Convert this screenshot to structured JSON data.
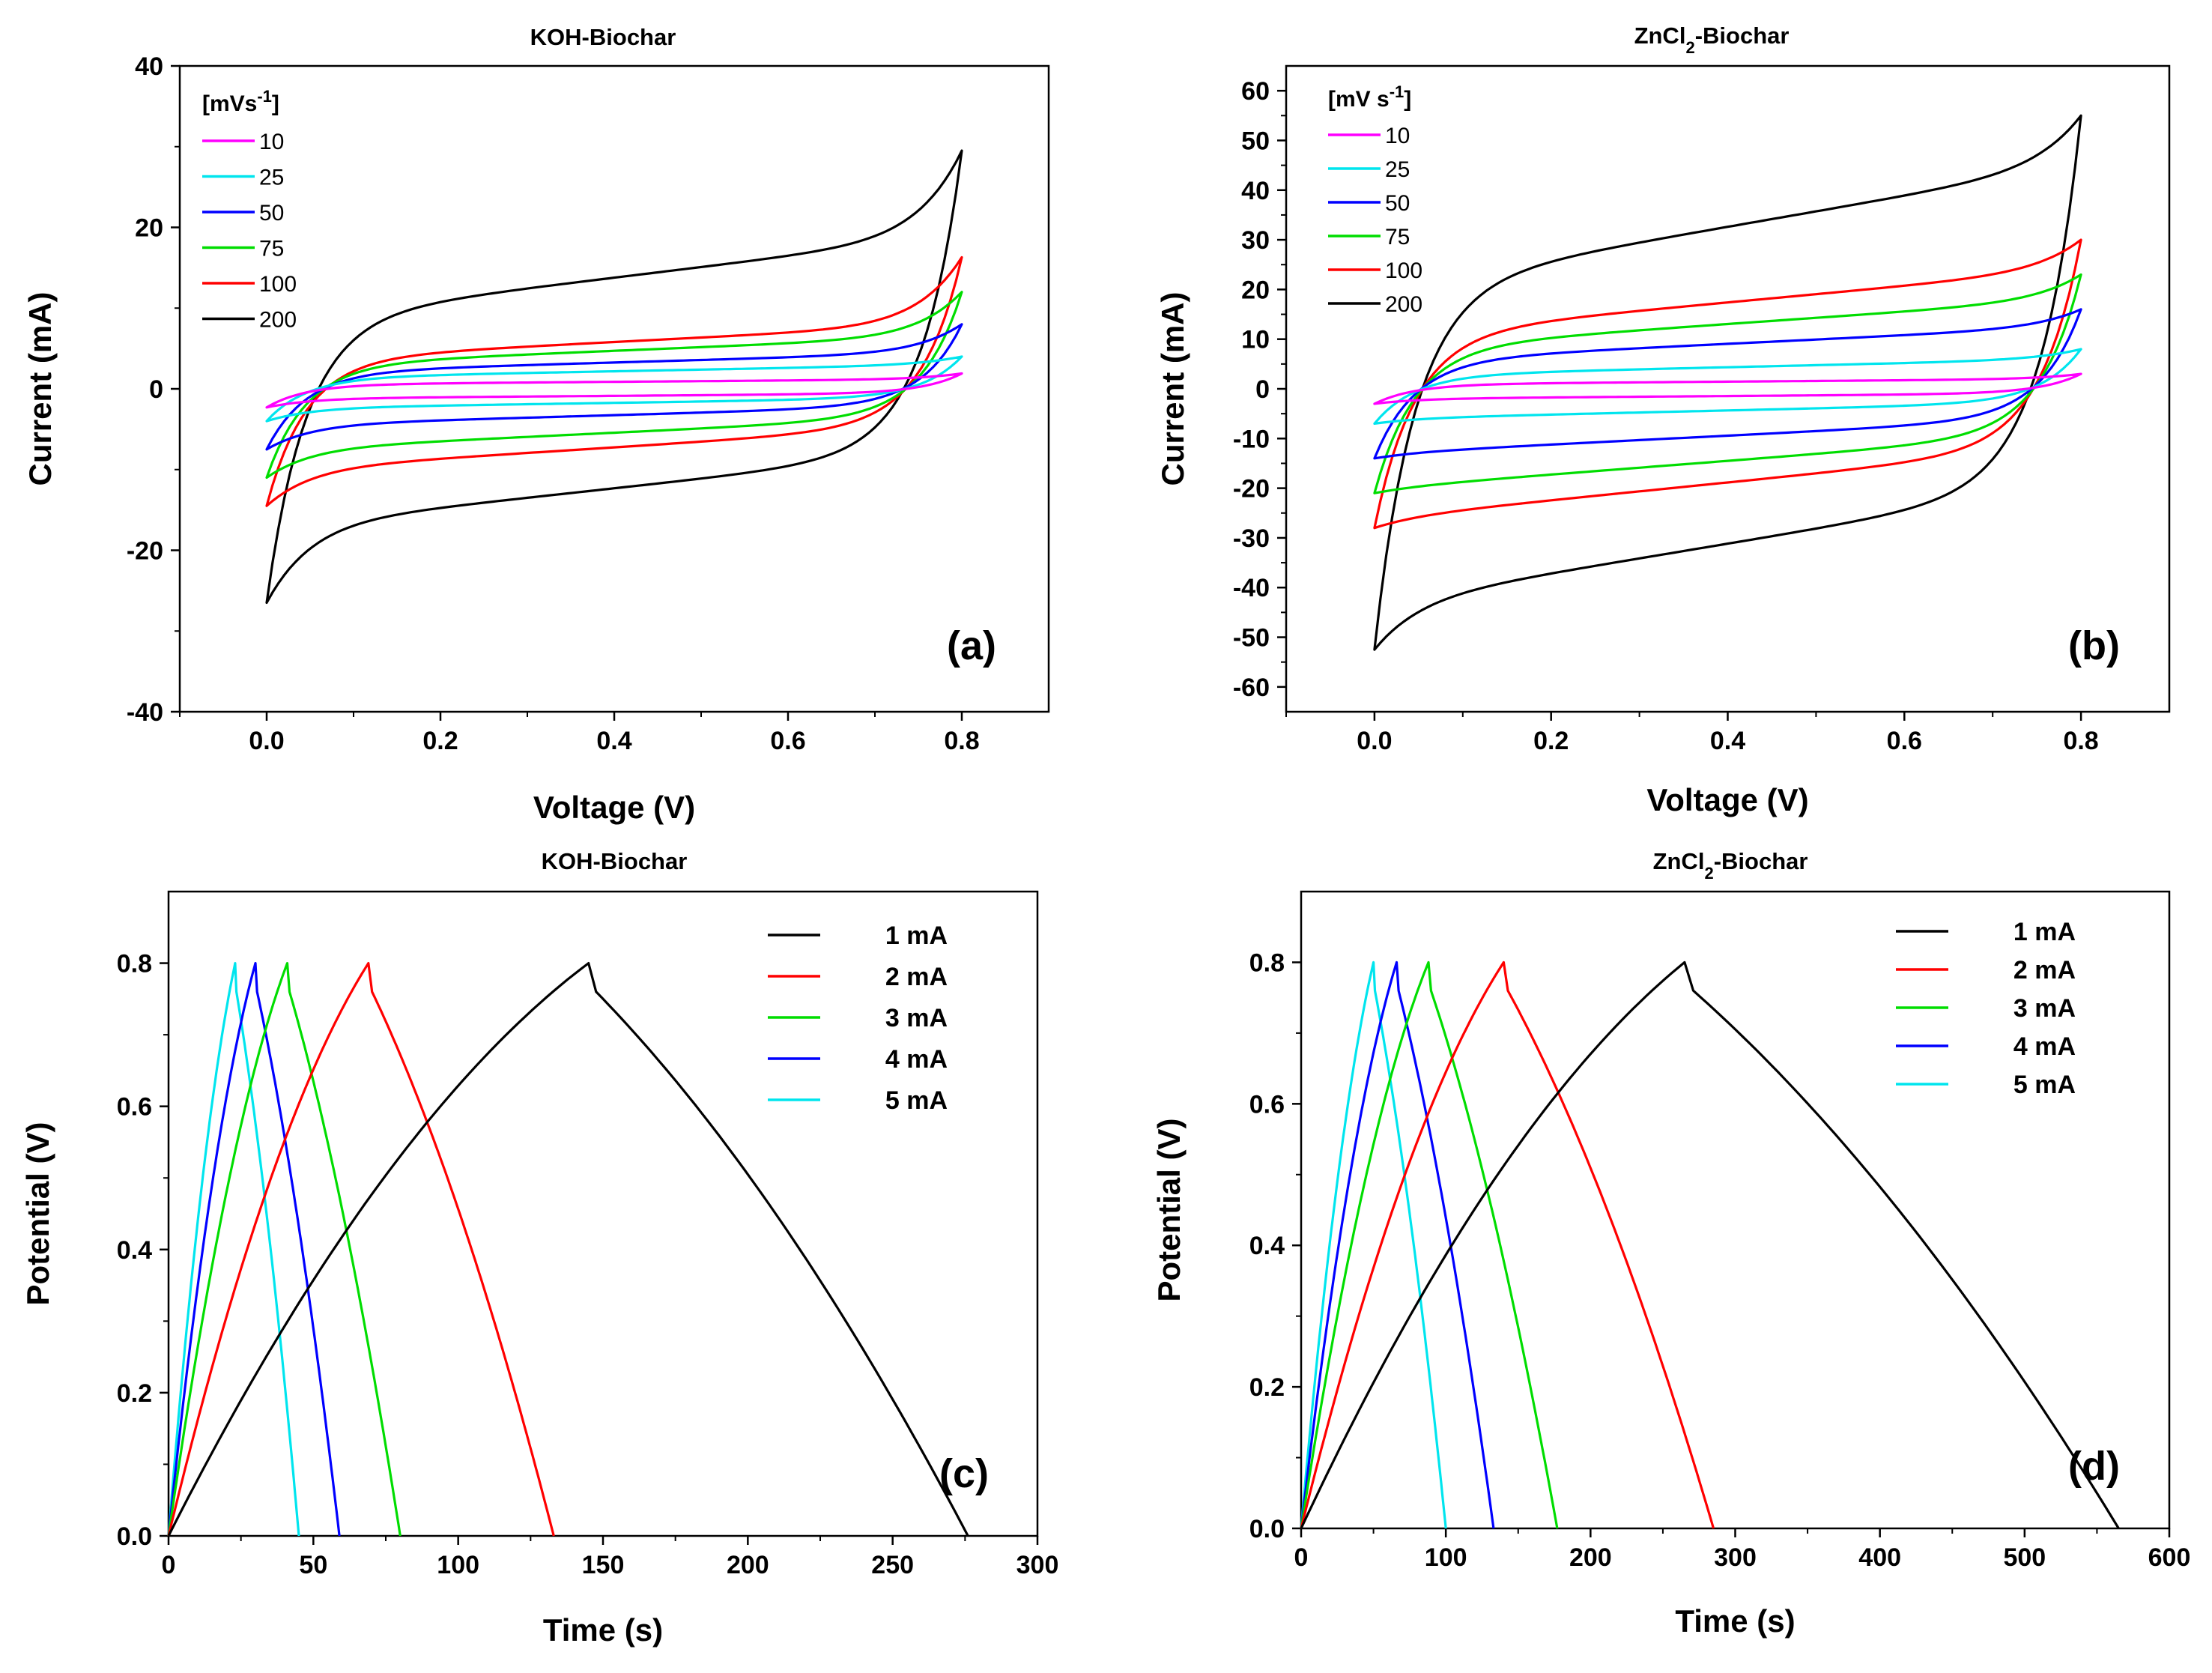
{
  "chart_data": [
    {
      "id": "a",
      "type": "line",
      "title": "KOH-Biochar",
      "xlabel": "Voltage (V)",
      "ylabel": "Current (mA)",
      "panel_label": "(a)",
      "xlim": [
        -0.1,
        0.9
      ],
      "ylim": [
        -40,
        40
      ],
      "xticks": [
        0.0,
        0.2,
        0.4,
        0.6,
        0.8
      ],
      "xtick_labels": [
        "0.0",
        "0.2",
        "0.4",
        "0.6",
        "0.8"
      ],
      "yticks": [
        -40,
        -20,
        0,
        20,
        40
      ],
      "ytick_labels": [
        "-40",
        "-20",
        "0",
        "20",
        "40"
      ],
      "legend_title": "[mVs-1]",
      "legend_title_main": "[mVs",
      "legend_title_sup": "-1",
      "legend_title_end": "]",
      "legend_position": "top-left",
      "series": [
        {
          "name": "10",
          "color": "#ff00ff",
          "cv": {
            "a": -1.2,
            "b": 1.2,
            "ai": -2.3,
            "bi": 1.9,
            "k": 1.3
          }
        },
        {
          "name": "25",
          "color": "#00e5ee",
          "cv": {
            "a": -2.4,
            "b": 3.0,
            "ai": -4.0,
            "bi": 4.0,
            "k": 3.0
          }
        },
        {
          "name": "50",
          "color": "#0000ff",
          "cv": {
            "a": -4.5,
            "b": 4.5,
            "ai": -7.5,
            "bi": 8.0,
            "k": 5.0
          }
        },
        {
          "name": "75",
          "color": "#00dd00",
          "cv": {
            "a": -7.5,
            "b": 6.5,
            "ai": -11.0,
            "bi": 12.0,
            "k": 6.5
          }
        },
        {
          "name": "100",
          "color": "#ff0000",
          "cv": {
            "a": -10.0,
            "b": 8.0,
            "ai": -14.5,
            "bi": 16.3,
            "k": 7.5
          }
        },
        {
          "name": "200",
          "color": "#000000",
          "cv": {
            "a": -17.0,
            "b": 19.0,
            "ai": -26.5,
            "bi": 29.5,
            "k": 11.0
          }
        }
      ]
    },
    {
      "id": "b",
      "type": "line",
      "title": "ZnCl2-Biochar",
      "title_pre": "ZnCl",
      "title_sub": "2",
      "title_post": "-Biochar",
      "xlabel": "Voltage (V)",
      "ylabel": "Current (mA)",
      "panel_label": "(b)",
      "xlim": [
        -0.1,
        0.9
      ],
      "ylim": [
        -65,
        65
      ],
      "xticks": [
        0.0,
        0.2,
        0.4,
        0.6,
        0.8
      ],
      "xtick_labels": [
        "0.0",
        "0.2",
        "0.4",
        "0.6",
        "0.8"
      ],
      "yticks": [
        -60,
        -50,
        -40,
        -30,
        -20,
        -10,
        0,
        10,
        20,
        30,
        40,
        50,
        60
      ],
      "ytick_labels": [
        "-60",
        "-50",
        "-40",
        "-30",
        "-20",
        "-10",
        "0",
        "10",
        "20",
        "30",
        "40",
        "50",
        "60"
      ],
      "legend_title": "[mV s-1]",
      "legend_title_main": "[mV s",
      "legend_title_sup": "-1",
      "legend_title_end": "]",
      "legend_position": "top-left",
      "series": [
        {
          "name": "10",
          "color": "#ff00ff",
          "cv": {
            "a": -2.0,
            "b": 2.0,
            "ai": -3.0,
            "bi": 3.0,
            "k": 1.5
          }
        },
        {
          "name": "25",
          "color": "#00e5ee",
          "cv": {
            "a": -6.0,
            "b": 6.0,
            "ai": -7.0,
            "bi": 8.0,
            "k": 2.0
          }
        },
        {
          "name": "50",
          "color": "#0000ff",
          "cv": {
            "a": -13.0,
            "b": 12.5,
            "ai": -14.0,
            "bi": 16.0,
            "k": 3.5
          }
        },
        {
          "name": "75",
          "color": "#00dd00",
          "cv": {
            "a": -20.0,
            "b": 18.0,
            "ai": -21.0,
            "bi": 23.0,
            "k": 5.0
          }
        },
        {
          "name": "100",
          "color": "#ff0000",
          "cv": {
            "a": -26.0,
            "b": 24.0,
            "ai": -28.0,
            "bi": 30.0,
            "k": 6.0
          }
        },
        {
          "name": "200",
          "color": "#000000",
          "cv": {
            "a": -43.0,
            "b": 45.0,
            "ai": -52.5,
            "bi": 55.0,
            "k": 9.5
          }
        }
      ]
    },
    {
      "id": "c",
      "type": "line",
      "title": "KOH-Biochar",
      "xlabel": "Time (s)",
      "ylabel": "Potential (V)",
      "panel_label": "(c)",
      "xlim": [
        0,
        300
      ],
      "ylim": [
        0,
        0.9
      ],
      "xticks": [
        0,
        50,
        100,
        150,
        200,
        250,
        300
      ],
      "xtick_labels": [
        "0",
        "50",
        "100",
        "150",
        "200",
        "250",
        "300"
      ],
      "yticks": [
        0.0,
        0.2,
        0.4,
        0.6,
        0.8
      ],
      "ytick_labels": [
        "0.0",
        "0.2",
        "0.4",
        "0.6",
        "0.8"
      ],
      "legend_position": "top-right",
      "series": [
        {
          "name": "1 mA",
          "color": "#000000",
          "charge_end_s": 145,
          "discharge_end_s": 276
        },
        {
          "name": "2 mA",
          "color": "#ff0000",
          "charge_end_s": 69,
          "discharge_end_s": 133
        },
        {
          "name": "3 mA",
          "color": "#00dd00",
          "charge_end_s": 41,
          "discharge_end_s": 80
        },
        {
          "name": "4 mA",
          "color": "#0000ff",
          "charge_end_s": 30,
          "discharge_end_s": 59
        },
        {
          "name": "5 mA",
          "color": "#00e5ee",
          "charge_end_s": 23,
          "discharge_end_s": 45
        }
      ],
      "v_max": 0.8
    },
    {
      "id": "d",
      "type": "line",
      "title": "ZnCl2-Biochar",
      "title_pre": "ZnCl",
      "title_sub": "2",
      "title_post": "-Biochar",
      "xlabel": "Time (s)",
      "ylabel": "Potential (V)",
      "panel_label": "(d)",
      "xlim": [
        0,
        600
      ],
      "ylim": [
        0,
        0.9
      ],
      "xticks": [
        0,
        100,
        200,
        300,
        400,
        500,
        600
      ],
      "xtick_labels": [
        "0",
        "100",
        "200",
        "300",
        "400",
        "500",
        "600"
      ],
      "yticks": [
        0.0,
        0.2,
        0.4,
        0.6,
        0.8
      ],
      "ytick_labels": [
        "0.0",
        "0.2",
        "0.4",
        "0.6",
        "0.8"
      ],
      "legend_position": "top-right",
      "series": [
        {
          "name": "1 mA",
          "color": "#000000",
          "charge_end_s": 265,
          "discharge_end_s": 565
        },
        {
          "name": "2 mA",
          "color": "#ff0000",
          "charge_end_s": 140,
          "discharge_end_s": 285
        },
        {
          "name": "3 mA",
          "color": "#00dd00",
          "charge_end_s": 88,
          "discharge_end_s": 177
        },
        {
          "name": "4 mA",
          "color": "#0000ff",
          "charge_end_s": 66,
          "discharge_end_s": 133
        },
        {
          "name": "5 mA",
          "color": "#00e5ee",
          "charge_end_s": 50,
          "discharge_end_s": 100
        }
      ],
      "v_max": 0.8
    }
  ]
}
